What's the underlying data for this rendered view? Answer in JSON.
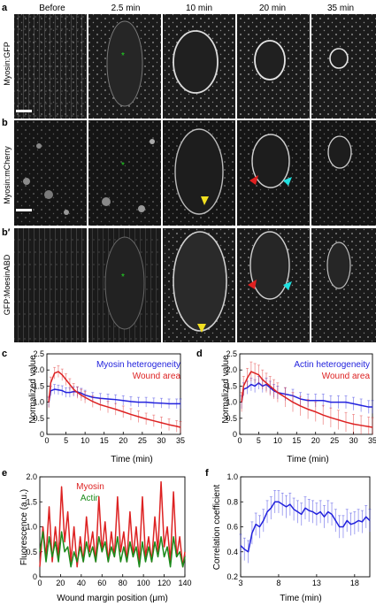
{
  "micro": {
    "columns": [
      "Before",
      "2.5 min",
      "10 min",
      "20 min",
      "35 min"
    ],
    "rows": [
      {
        "panel": "a",
        "label": "Myosin:GFP"
      },
      {
        "panel": "b",
        "label": "Myosin:mCherry"
      },
      {
        "panel": "b′",
        "label": "GFP:MoesinABD"
      }
    ]
  },
  "chart_data": [
    {
      "panel": "c",
      "type": "line",
      "xlabel": "Time (min)",
      "ylabel": "Normalized value",
      "xlim": [
        0,
        35
      ],
      "ylim": [
        0,
        2.5
      ],
      "xticks": [
        0,
        5,
        10,
        15,
        20,
        25,
        30,
        35
      ],
      "yticks": [
        0,
        0.5,
        1.0,
        1.5,
        2.0,
        2.5
      ],
      "legend_position": "top-right",
      "series": [
        {
          "name": "Myosin heterogeneity",
          "color": "#2222dd",
          "x": [
            0.5,
            1,
            2,
            3,
            4,
            5,
            6,
            7,
            8,
            9,
            10,
            12,
            14,
            16,
            18,
            20,
            22,
            24,
            26,
            28,
            30,
            32,
            34,
            35
          ],
          "y": [
            1.0,
            1.35,
            1.4,
            1.38,
            1.36,
            1.3,
            1.3,
            1.33,
            1.32,
            1.28,
            1.22,
            1.15,
            1.12,
            1.1,
            1.08,
            1.05,
            1.02,
            1.0,
            1.0,
            0.98,
            0.97,
            0.95,
            0.95,
            0.95
          ],
          "err": 0.15
        },
        {
          "name": "Wound area",
          "color": "#dd2222",
          "x": [
            0.5,
            1,
            2,
            3,
            4,
            5,
            6,
            7,
            8,
            9,
            10,
            12,
            14,
            16,
            18,
            20,
            22,
            24,
            26,
            28,
            30,
            32,
            34,
            35
          ],
          "y": [
            1.0,
            1.6,
            1.9,
            1.95,
            1.85,
            1.7,
            1.55,
            1.4,
            1.3,
            1.22,
            1.15,
            1.02,
            0.92,
            0.85,
            0.78,
            0.7,
            0.62,
            0.55,
            0.48,
            0.42,
            0.36,
            0.3,
            0.25,
            0.22
          ],
          "err": 0.18
        }
      ]
    },
    {
      "panel": "d",
      "type": "line",
      "xlabel": "Time (min)",
      "ylabel": "Normalized value",
      "xlim": [
        0,
        35
      ],
      "ylim": [
        0,
        2.5
      ],
      "xticks": [
        0,
        5,
        10,
        15,
        20,
        25,
        30,
        35
      ],
      "yticks": [
        0,
        0.5,
        1.0,
        1.5,
        2.0,
        2.5
      ],
      "legend_position": "top-right",
      "series": [
        {
          "name": "Actin heterogeneity",
          "color": "#2222dd",
          "x": [
            0.5,
            1,
            2,
            3,
            4,
            5,
            6,
            7,
            8,
            9,
            10,
            12,
            14,
            16,
            18,
            20,
            22,
            24,
            26,
            28,
            30,
            32,
            34,
            35
          ],
          "y": [
            1.0,
            1.4,
            1.45,
            1.55,
            1.5,
            1.6,
            1.5,
            1.55,
            1.45,
            1.35,
            1.3,
            1.25,
            1.2,
            1.1,
            1.05,
            1.05,
            1.05,
            1.0,
            1.0,
            1.0,
            0.95,
            0.9,
            0.85,
            0.85
          ],
          "err": 0.2
        },
        {
          "name": "Wound area",
          "color": "#dd2222",
          "x": [
            0.5,
            1,
            2,
            3,
            4,
            5,
            6,
            7,
            8,
            9,
            10,
            12,
            14,
            16,
            18,
            20,
            22,
            24,
            26,
            28,
            30,
            32,
            34,
            35
          ],
          "y": [
            1.0,
            1.5,
            1.75,
            1.95,
            1.9,
            1.85,
            1.7,
            1.6,
            1.5,
            1.4,
            1.3,
            1.15,
            1.0,
            0.88,
            0.78,
            0.7,
            0.6,
            0.52,
            0.45,
            0.38,
            0.32,
            0.28,
            0.24,
            0.22
          ],
          "err": 0.3
        }
      ]
    },
    {
      "panel": "e",
      "type": "line",
      "xlabel": "Wound margin position (μm)",
      "ylabel": "Fluorescence (a.u.)",
      "xlim": [
        0,
        140
      ],
      "ylim": [
        0,
        2.0
      ],
      "xticks": [
        0,
        20,
        40,
        60,
        80,
        100,
        120,
        140
      ],
      "yticks": [
        0,
        0.5,
        1.0,
        1.5,
        2.0
      ],
      "legend_position": "top-center",
      "series": [
        {
          "name": "Myosin",
          "color": "#dd2222",
          "x": [
            0,
            3,
            6,
            9,
            12,
            15,
            18,
            21,
            24,
            27,
            30,
            33,
            36,
            39,
            42,
            45,
            48,
            51,
            54,
            57,
            60,
            63,
            66,
            69,
            72,
            75,
            78,
            81,
            84,
            87,
            90,
            93,
            96,
            99,
            102,
            105,
            108,
            111,
            114,
            117,
            120,
            123,
            126,
            129,
            132,
            135,
            138,
            140
          ],
          "y": [
            0.2,
            1.0,
            0.4,
            1.4,
            0.3,
            1.0,
            0.4,
            1.8,
            0.7,
            1.3,
            0.3,
            1.0,
            0.2,
            0.8,
            0.3,
            1.2,
            0.5,
            0.9,
            0.3,
            1.6,
            0.5,
            1.1,
            0.3,
            0.9,
            0.4,
            1.6,
            0.5,
            0.9,
            0.3,
            1.3,
            0.4,
            1.0,
            0.3,
            1.6,
            0.4,
            0.8,
            0.3,
            1.2,
            0.5,
            1.9,
            0.6,
            1.0,
            0.3,
            1.7,
            0.4,
            0.8,
            0.2,
            0.5
          ]
        },
        {
          "name": "Actin",
          "color": "#1a8a1a",
          "x": [
            0,
            3,
            6,
            9,
            12,
            15,
            18,
            21,
            24,
            27,
            30,
            33,
            36,
            39,
            42,
            45,
            48,
            51,
            54,
            57,
            60,
            63,
            66,
            69,
            72,
            75,
            78,
            81,
            84,
            87,
            90,
            93,
            96,
            99,
            102,
            105,
            108,
            111,
            114,
            117,
            120,
            123,
            126,
            129,
            132,
            135,
            138,
            140
          ],
          "y": [
            0.5,
            0.9,
            0.3,
            0.8,
            0.4,
            0.7,
            0.3,
            0.9,
            0.5,
            0.6,
            0.2,
            0.5,
            0.3,
            0.6,
            0.3,
            0.7,
            0.4,
            0.6,
            0.3,
            0.8,
            0.5,
            0.7,
            0.3,
            0.6,
            0.4,
            0.8,
            0.3,
            0.6,
            0.3,
            0.7,
            0.4,
            0.6,
            0.2,
            0.7,
            0.3,
            0.6,
            0.3,
            0.7,
            0.4,
            0.8,
            0.4,
            0.6,
            0.2,
            0.8,
            0.4,
            0.5,
            0.2,
            0.4
          ]
        }
      ]
    },
    {
      "panel": "f",
      "type": "line",
      "xlabel": "Time (min)",
      "ylabel": "Correlation coefficient",
      "xlim": [
        3,
        20
      ],
      "ylim": [
        0.2,
        1.0
      ],
      "xticks": [
        3,
        8,
        13,
        18
      ],
      "yticks": [
        0.2,
        0.4,
        0.6,
        0.8,
        1.0
      ],
      "series": [
        {
          "color": "#2222dd",
          "x": [
            3,
            3.5,
            4,
            4.5,
            5,
            5.5,
            6,
            6.5,
            7,
            7.5,
            8,
            8.5,
            9,
            9.5,
            10,
            10.5,
            11,
            11.5,
            12,
            12.5,
            13,
            13.5,
            14,
            14.5,
            15,
            15.5,
            16,
            16.5,
            17,
            17.5,
            18,
            18.5,
            19,
            19.5,
            20
          ],
          "y": [
            0.45,
            0.42,
            0.4,
            0.55,
            0.62,
            0.6,
            0.65,
            0.72,
            0.75,
            0.8,
            0.8,
            0.78,
            0.76,
            0.78,
            0.74,
            0.72,
            0.7,
            0.75,
            0.73,
            0.72,
            0.7,
            0.72,
            0.68,
            0.72,
            0.7,
            0.65,
            0.6,
            0.6,
            0.65,
            0.62,
            0.63,
            0.65,
            0.64,
            0.68,
            0.65
          ],
          "err": 0.09
        }
      ]
    }
  ]
}
